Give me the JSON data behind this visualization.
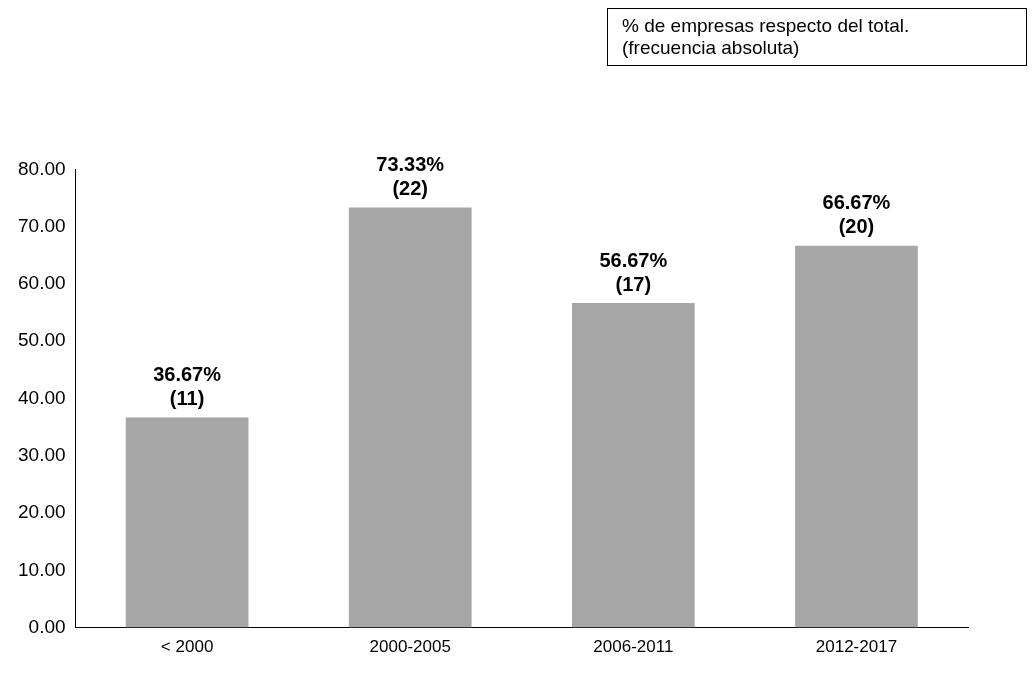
{
  "chart_data": {
    "type": "bar",
    "categories": [
      "< 2000",
      "2000-2005",
      "2006-2011",
      "2012-2017"
    ],
    "values": [
      36.67,
      73.33,
      56.67,
      66.67
    ],
    "value_labels": [
      "36.67%\n(11)",
      "73.33%\n(22)",
      "56.67%\n(17)",
      "66.67%\n(20)"
    ],
    "color": "#a6a6a6",
    "ylim": [
      0,
      80
    ],
    "yticks": [
      {
        "value": 0,
        "label": "0.00"
      },
      {
        "value": 10,
        "label": "10.00"
      },
      {
        "value": 20,
        "label": "20.00"
      },
      {
        "value": 30,
        "label": "30.00"
      },
      {
        "value": 40,
        "label": "40.00"
      },
      {
        "value": 50,
        "label": "50.00"
      },
      {
        "value": 60,
        "label": "60.00"
      },
      {
        "value": 70,
        "label": "70.00"
      },
      {
        "value": 80,
        "label": "80.00"
      }
    ],
    "grid": false,
    "legend": false,
    "annotations": [
      "% de empresas respecto del total.\n(frecuencia absoluta)"
    ]
  }
}
